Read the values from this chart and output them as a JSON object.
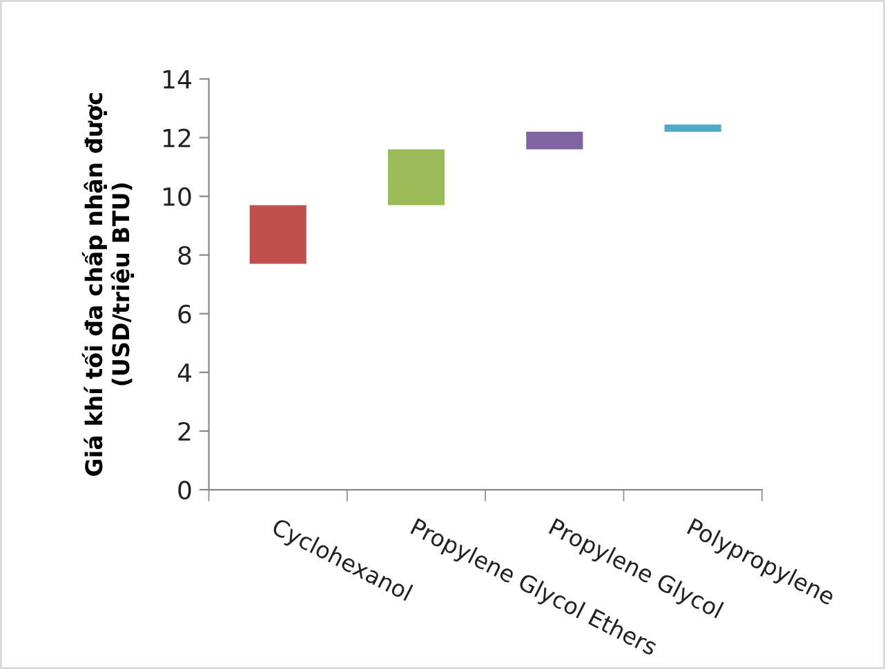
{
  "chart_data": {
    "type": "bar",
    "ylabel": "Giá khí tối đa chấp nhận được\n(USD/triệu BTU)",
    "categories": [
      "Cyclohexanol",
      "Propylene Glycol Ethers",
      "Propylene Glycol",
      "Polypropylene"
    ],
    "values": [
      2.0,
      1.9,
      0.6,
      0.25
    ],
    "base": [
      7.7,
      9.7,
      11.6,
      12.2
    ],
    "colors": [
      "#c0504d",
      "#9bbb59",
      "#8064a2",
      "#4bacc6"
    ],
    "ylim": [
      0,
      14
    ],
    "yticks": [
      0,
      2,
      4,
      6,
      8,
      10,
      12,
      14
    ],
    "grid": false,
    "legend": false
  }
}
